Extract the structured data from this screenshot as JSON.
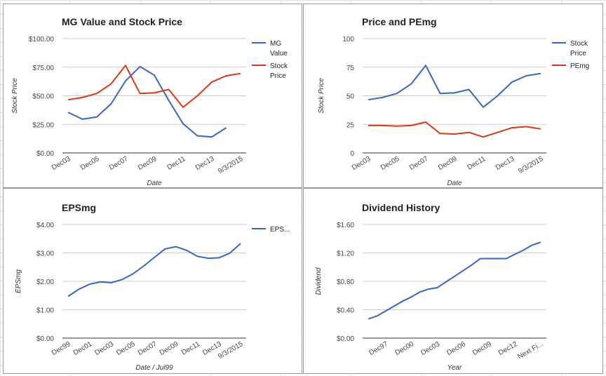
{
  "colors": {
    "blue": "#3366cc",
    "red": "#dc3912",
    "grid": "#cccccc",
    "axis": "#333333"
  },
  "chart_data": [
    {
      "type": "line",
      "title": "MG Value and Stock Price",
      "xlabel": "Date",
      "ylabel": "Stock Price",
      "ylim": [
        0,
        100
      ],
      "y_ticks": [
        "$0.00",
        "$25.00",
        "$50.00",
        "$75.00",
        "$100.00"
      ],
      "x_tick_labels": [
        "Dec03",
        "Dec05",
        "Dec07",
        "Dec09",
        "Dec11",
        "Dec13",
        "9/3/2015"
      ],
      "legend_position": "right",
      "series": [
        {
          "name": "MG Value",
          "color": "#3366cc",
          "values": [
            35.5,
            29.5,
            31.5,
            43,
            63,
            75.5,
            68,
            46,
            25.5,
            15,
            14,
            22,
            null
          ]
        },
        {
          "name": "Stock Price",
          "color": "#dc3912",
          "values": [
            46.5,
            48.5,
            52,
            60.5,
            76.5,
            52,
            52.5,
            55.5,
            40,
            50,
            62,
            67.5,
            69.5
          ]
        }
      ]
    },
    {
      "type": "line",
      "title": "Price and PEmg",
      "xlabel": "Date",
      "ylabel": "Stock Price",
      "ylim": [
        0,
        100
      ],
      "y_ticks": [
        "0",
        "25",
        "50",
        "75",
        "100"
      ],
      "x_tick_labels": [
        "Dec03",
        "Dec05",
        "Dec07",
        "Dec09",
        "Dec11",
        "Dec13",
        "9/3/2015"
      ],
      "legend_position": "right",
      "series": [
        {
          "name": "Stock Price",
          "color": "#3366cc",
          "values": [
            46.5,
            48.5,
            52,
            60.5,
            76.5,
            52,
            52.5,
            55.5,
            40,
            50,
            62,
            67.5,
            69.5
          ]
        },
        {
          "name": "PEmg",
          "color": "#dc3912",
          "values": [
            24,
            24,
            23.5,
            24,
            27,
            17,
            16.5,
            18,
            14,
            18,
            22,
            23,
            21
          ]
        }
      ]
    },
    {
      "type": "line",
      "title": "EPSmg",
      "xlabel": "Date / Jul99",
      "ylabel": "EPSmg",
      "ylim": [
        0,
        4
      ],
      "y_ticks": [
        "$0.00",
        "$1.00",
        "$2.00",
        "$3.00",
        "$4.00"
      ],
      "x_tick_labels": [
        "Dec99",
        "Dec01",
        "Dec03",
        "Dec05",
        "Dec07",
        "Dec09",
        "Dec11",
        "Dec13",
        "9/3/2015"
      ],
      "legend_position": "right",
      "series": [
        {
          "name": "EPS...",
          "color": "#3366cc",
          "values": [
            1.47,
            1.72,
            1.9,
            1.98,
            1.95,
            2.06,
            2.26,
            2.53,
            2.84,
            3.14,
            3.22,
            3.09,
            2.88,
            2.81,
            2.83,
            2.99,
            3.33
          ]
        }
      ]
    },
    {
      "type": "line",
      "title": "Dividend History",
      "xlabel": "Year",
      "ylabel": "Dividend",
      "ylim": [
        0,
        1.6
      ],
      "y_ticks": [
        "$0.00",
        "$0.40",
        "$0.80",
        "$1.20",
        "$1.60"
      ],
      "x_tick_labels": [
        "Dec97",
        "Dec00",
        "Dec03",
        "Dec06",
        "Dec09",
        "Dec12",
        "Next Fi..."
      ],
      "legend_position": "none",
      "series": [
        {
          "name": "",
          "color": "#3366cc",
          "values": [
            0.27,
            0.31,
            0.38,
            0.45,
            0.52,
            0.58,
            0.65,
            0.69,
            0.71,
            0.79,
            0.87,
            0.95,
            1.03,
            1.12,
            1.12,
            1.12,
            1.12,
            1.18,
            1.24,
            1.31,
            1.35
          ]
        }
      ]
    }
  ]
}
